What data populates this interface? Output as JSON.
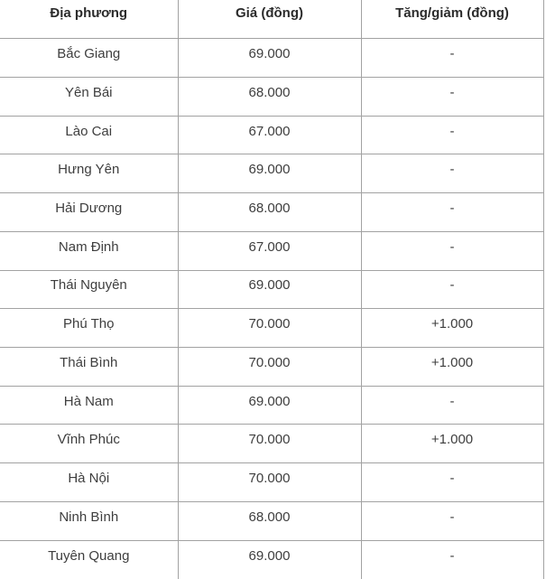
{
  "table": {
    "columns": [
      {
        "label": "Địa phương"
      },
      {
        "label": "Giá (đồng)"
      },
      {
        "label": "Tăng/giảm (đồng)"
      }
    ],
    "rows": [
      {
        "location": "Bắc Giang",
        "price": "69.000",
        "change": "-"
      },
      {
        "location": "Yên Bái",
        "price": "68.000",
        "change": "-"
      },
      {
        "location": "Lào Cai",
        "price": "67.000",
        "change": "-"
      },
      {
        "location": "Hưng Yên",
        "price": "69.000",
        "change": "-"
      },
      {
        "location": "Hải Dương",
        "price": "68.000",
        "change": "-"
      },
      {
        "location": "Nam Định",
        "price": "67.000",
        "change": "-"
      },
      {
        "location": "Thái Nguyên",
        "price": "69.000",
        "change": "-"
      },
      {
        "location": "Phú Thọ",
        "price": "70.000",
        "change": "+1.000"
      },
      {
        "location": "Thái Bình",
        "price": "70.000",
        "change": "+1.000"
      },
      {
        "location": "Hà Nam",
        "price": "69.000",
        "change": "-"
      },
      {
        "location": "Vĩnh Phúc",
        "price": "70.000",
        "change": "+1.000"
      },
      {
        "location": "Hà Nội",
        "price": "70.000",
        "change": "-"
      },
      {
        "location": "Ninh Bình",
        "price": "68.000",
        "change": "-"
      },
      {
        "location": "Tuyên Quang",
        "price": "69.000",
        "change": "-"
      }
    ]
  },
  "colors": {
    "border": "#a2a2a2",
    "header_text": "#2b2b2b",
    "body_text": "#3e3e3e",
    "background": "#ffffff"
  }
}
